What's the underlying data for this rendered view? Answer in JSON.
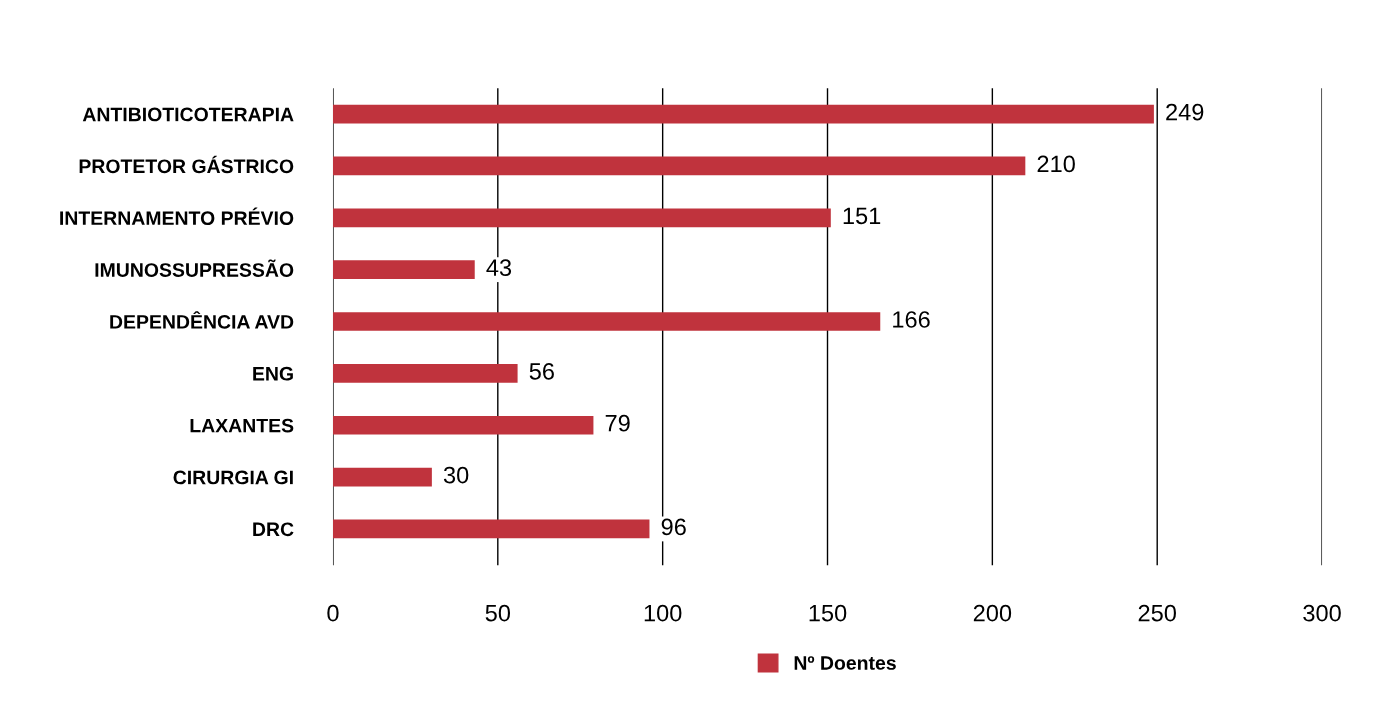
{
  "chart_data": {
    "type": "bar",
    "orientation": "horizontal",
    "categories": [
      "ANTIBIOTICOTERAPIA",
      "PROTETOR GÁSTRICO",
      "INTERNAMENTO PRÉVIO",
      "IMUNOSSUPRESSÃO",
      "DEPENDÊNCIA AVD",
      "ENG",
      "LAXANTES",
      "CIRURGIA GI",
      "DRC"
    ],
    "series": [
      {
        "name": "Nº Doentes",
        "color": "#c0333d",
        "values": [
          249,
          210,
          151,
          43,
          166,
          56,
          79,
          30,
          96
        ]
      }
    ],
    "xlim": [
      0,
      300
    ],
    "xticks": [
      0,
      50,
      100,
      150,
      200,
      250,
      300
    ],
    "grid": "x",
    "legend": "bottom",
    "data_labels": true
  }
}
